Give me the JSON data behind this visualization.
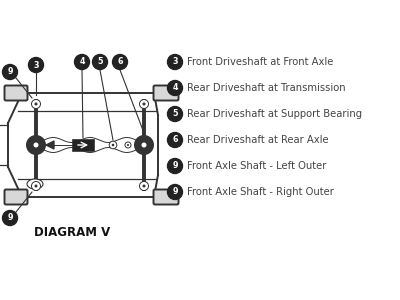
{
  "background_color": "#ffffff",
  "diagram_label": "DIAGRAM V",
  "legend_items": [
    {
      "num": "3",
      "text": "Front Driveshaft at Front Axle"
    },
    {
      "num": "4",
      "text": "Rear Driveshaft at Transmission"
    },
    {
      "num": "5",
      "text": "Rear Driveshaft at Support Bearing"
    },
    {
      "num": "6",
      "text": "Rear Driveshaft at Rear Axle"
    },
    {
      "num": "9",
      "text": "Front Axle Shaft - Left Outer"
    },
    {
      "num": "9",
      "text": "Front Axle Shaft - Right Outer"
    }
  ],
  "bubble_color": "#222222",
  "bubble_text_color": "#ffffff",
  "line_color": "#333333",
  "text_color": "#444444",
  "font_size_legend": 7.2,
  "font_size_label": 8.0,
  "fig_w": 4.0,
  "fig_h": 3.0,
  "dpi": 100
}
